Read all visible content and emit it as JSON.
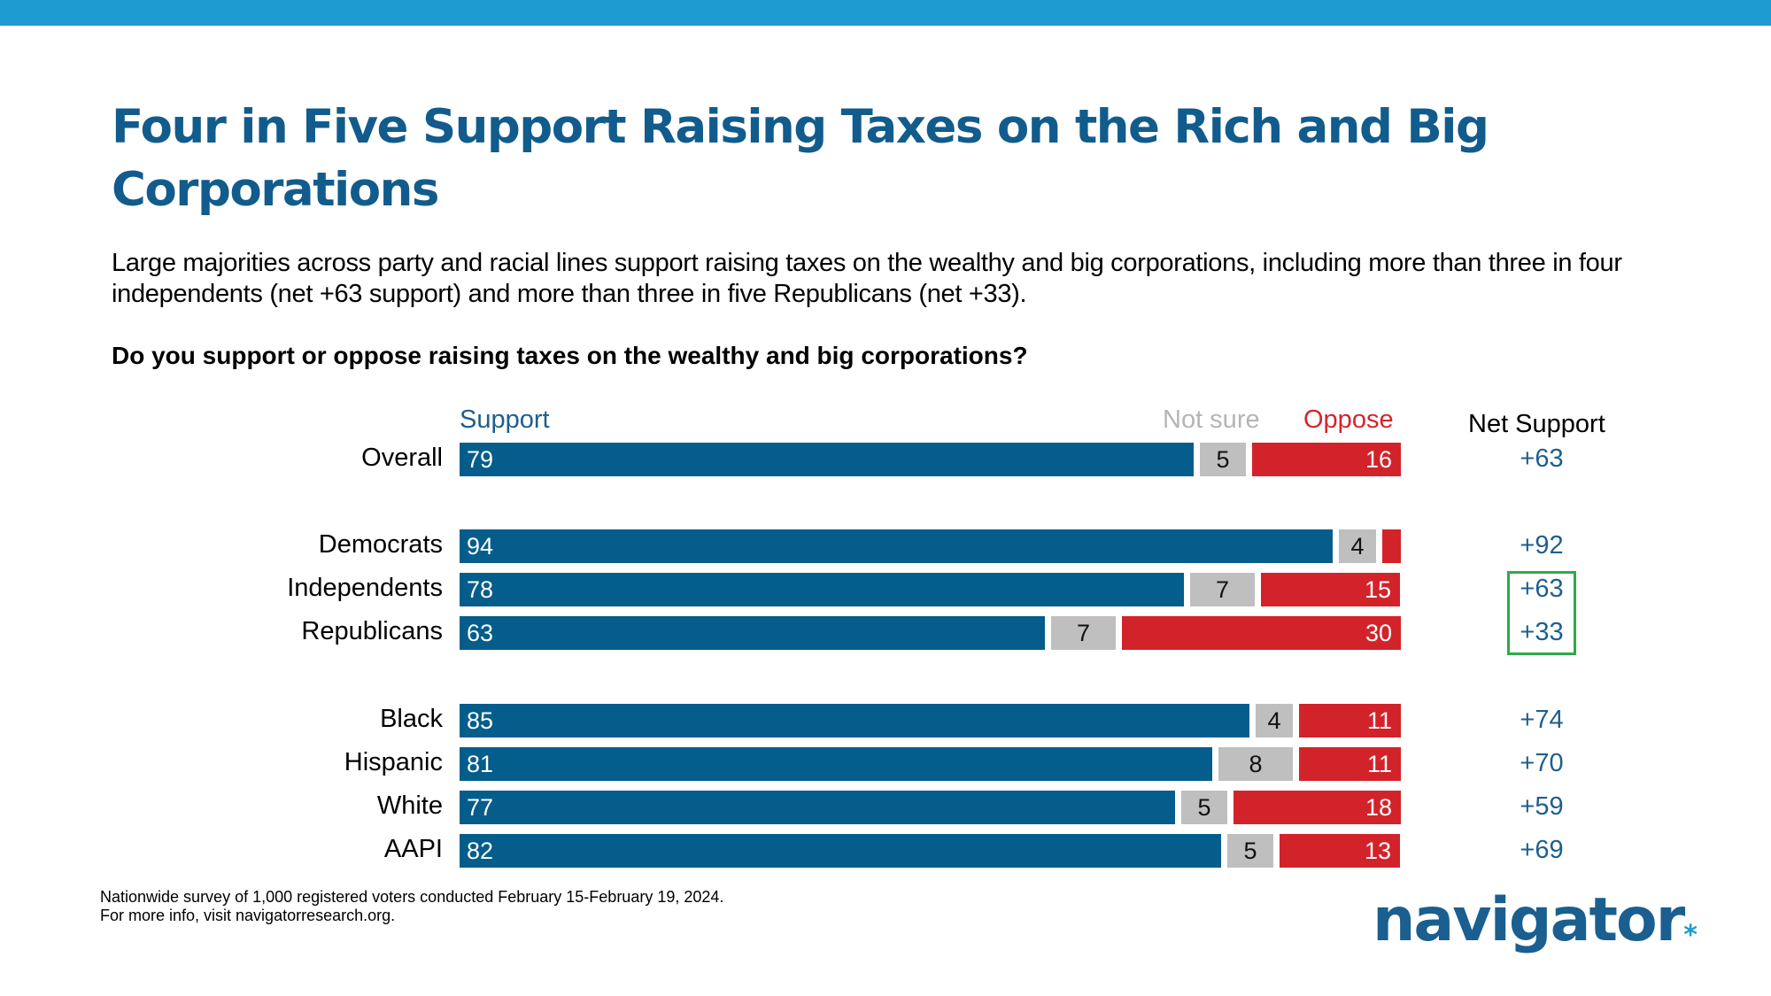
{
  "header": {
    "title": "Four in Five Support Raising Taxes on the Rich and Big Corporations",
    "subtitle": "Large majorities across party and racial lines support raising taxes on the wealthy and big corporations, including more than three in four independents (net +63 support) and more than three in five Republicans (net +33).",
    "question": "Do you support or oppose raising taxes on the wealthy and big corporations?"
  },
  "colors": {
    "top_bar": "#1e9bcf",
    "title": "#115c8c",
    "support": "#045d8b",
    "not_sure": "#bfbfbf",
    "oppose": "#d3232a",
    "net": "#1d5f8e",
    "highlight": "#2eaa4a"
  },
  "chart_data": {
    "type": "bar",
    "orientation": "horizontal-stacked",
    "title": "Do you support or oppose raising taxes on the wealthy and big corporations?",
    "legend": [
      "Support",
      "Not sure",
      "Oppose"
    ],
    "net_header": "Net Support",
    "categories": [
      "Overall",
      "Democrats",
      "Independents",
      "Republicans",
      "Black",
      "Hispanic",
      "White",
      "AAPI"
    ],
    "groups": [
      [
        "Overall"
      ],
      [
        "Democrats",
        "Independents",
        "Republicans"
      ],
      [
        "Black",
        "Hispanic",
        "White",
        "AAPI"
      ]
    ],
    "series": [
      {
        "name": "Support",
        "values": [
          79,
          94,
          78,
          63,
          85,
          81,
          77,
          82
        ]
      },
      {
        "name": "Not sure",
        "values": [
          5,
          4,
          7,
          7,
          4,
          8,
          5,
          5
        ]
      },
      {
        "name": "Oppose",
        "values": [
          16,
          2,
          15,
          30,
          11,
          11,
          18,
          13
        ]
      }
    ],
    "labels": {
      "Support": [
        "79",
        "94",
        "78",
        "63",
        "85",
        "81",
        "77",
        "82"
      ],
      "Not sure": [
        "5",
        "4",
        "7",
        "7",
        "4",
        "8",
        "5",
        "5"
      ],
      "Oppose": [
        "16",
        "",
        "15",
        "30",
        "11",
        "11",
        "18",
        "13"
      ]
    },
    "net_support": [
      "+63",
      "+92",
      "+63",
      "+33",
      "+74",
      "+70",
      "+59",
      "+69"
    ],
    "highlighted_net": [
      "Independents",
      "Republicans"
    ],
    "xlim": [
      0,
      100
    ]
  },
  "footer": {
    "line1": "Nationwide survey of 1,000 registered voters conducted February 15-February 19, 2024.",
    "line2": "For more info, visit navigatorresearch.org."
  },
  "logo": {
    "text": "navigator",
    "mark": "*"
  }
}
